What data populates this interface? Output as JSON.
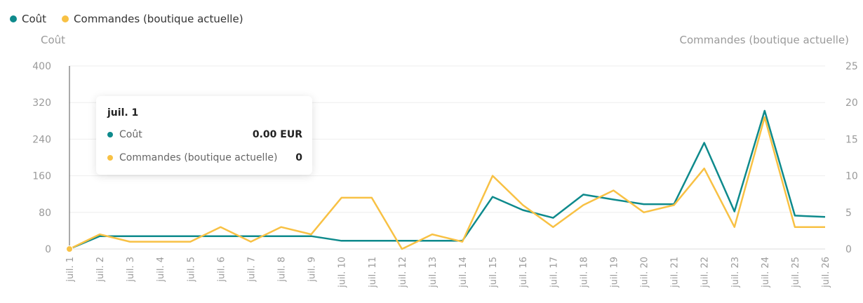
{
  "legend": {
    "items": [
      {
        "label": "Coût",
        "color": "#0e8a8c"
      },
      {
        "label": "Commandes (boutique actuelle)",
        "color": "#f8c144"
      }
    ]
  },
  "axes": {
    "left_title": "Coût",
    "right_title": "Commandes (boutique actuelle)"
  },
  "tooltip": {
    "title": "juil. 1",
    "rows": [
      {
        "label": "Coût",
        "value": "0.00 EUR",
        "color": "#0e8a8c"
      },
      {
        "label": "Commandes (boutique actuelle)",
        "value": "0",
        "color": "#f8c144"
      }
    ]
  },
  "chart_data": {
    "type": "line",
    "categories": [
      "juil. 1",
      "juil. 2",
      "juil. 3",
      "juil. 4",
      "juil. 5",
      "juil. 6",
      "juil. 7",
      "juil. 8",
      "juil. 9",
      "juil. 10",
      "juil. 11",
      "juil. 12",
      "juil. 13",
      "juil. 14",
      "juil. 15",
      "juil. 16",
      "juil. 17",
      "juil. 18",
      "juil. 19",
      "juil. 20",
      "juil. 21",
      "juil. 22",
      "juil. 23",
      "juil. 24",
      "juil. 25",
      "juil. 26"
    ],
    "series": [
      {
        "name": "Coût",
        "axis": "left",
        "color": "#0e8a8c",
        "values": [
          0,
          28,
          28,
          28,
          28,
          28,
          28,
          28,
          28,
          18,
          18,
          18,
          18,
          18,
          114,
          85,
          68,
          119,
          108,
          98,
          98,
          232,
          82,
          302,
          73,
          70
        ]
      },
      {
        "name": "Commandes (boutique actuelle)",
        "axis": "right",
        "color": "#f8c144",
        "values": [
          0,
          2,
          1,
          1,
          1,
          3,
          1,
          3,
          2,
          7,
          7,
          0,
          2,
          1,
          10,
          6,
          3,
          6,
          8,
          5,
          6,
          11,
          3,
          18,
          3,
          3
        ]
      }
    ],
    "y_left": {
      "min": 0,
      "max": 400,
      "ticks": [
        0,
        80,
        160,
        240,
        320,
        400
      ]
    },
    "y_right": {
      "min": 0,
      "max": 25,
      "ticks": [
        0,
        5,
        10,
        15,
        20,
        25
      ]
    },
    "highlight_index": 0,
    "grid": true,
    "legend_position": "top-left"
  }
}
